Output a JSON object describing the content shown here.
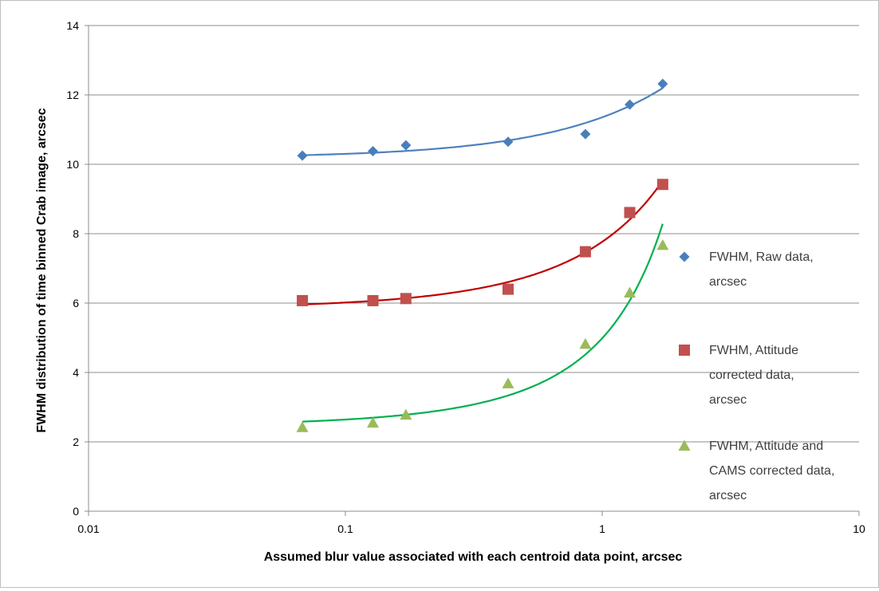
{
  "chart_data": {
    "type": "scatter",
    "title": "",
    "xlabel": "Assumed blur value associated with each centroid data point, arcsec",
    "ylabel": "FWHM distribution of time binned Crab image, arcsec",
    "xscale": "log",
    "xlim": [
      0.01,
      10
    ],
    "ylim": [
      0,
      14
    ],
    "xticks": [
      "0.01",
      "0.1",
      "1",
      "10"
    ],
    "yticks": [
      "0",
      "2",
      "4",
      "6",
      "8",
      "10",
      "12",
      "14"
    ],
    "grid": "horizontal",
    "legend_position": "right",
    "x": [
      0.068,
      0.128,
      0.172,
      0.43,
      0.86,
      1.28,
      1.72
    ],
    "series": [
      {
        "name": "FWHM, Raw data, arcsec",
        "marker": "diamond",
        "color": "#4a7ebb",
        "trend_color": "#4f81bd",
        "values": [
          10.25,
          10.38,
          10.55,
          10.65,
          10.87,
          11.72,
          12.32
        ]
      },
      {
        "name": "FWHM, Attitude corrected data, arcsec",
        "marker": "square",
        "color": "#c0504d",
        "trend_color": "#c00000",
        "values": [
          6.07,
          6.07,
          6.13,
          6.4,
          7.48,
          8.61,
          9.42
        ]
      },
      {
        "name": "FWHM, Attitude and CAMS corrected data, arcsec",
        "marker": "triangle",
        "color": "#9bbb59",
        "trend_color": "#00b050",
        "values": [
          2.42,
          2.55,
          2.78,
          3.68,
          4.82,
          6.3,
          7.67
        ]
      }
    ]
  }
}
